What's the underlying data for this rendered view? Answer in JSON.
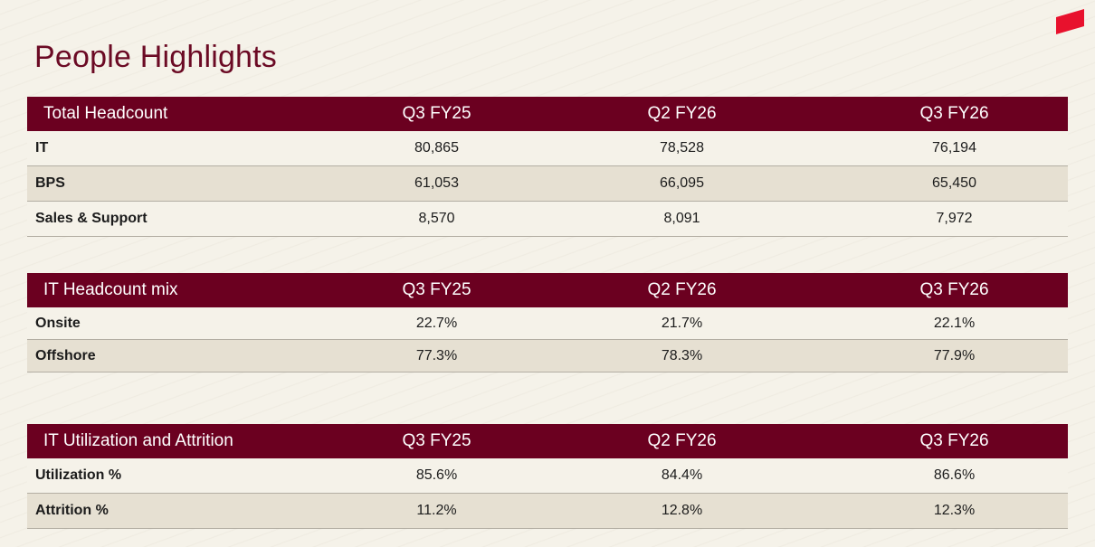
{
  "page": {
    "title": "People Highlights"
  },
  "headcount_table": {
    "header": [
      "Total Headcount",
      "Q3 FY25",
      "Q2 FY26",
      "Q3 FY26"
    ],
    "rows": [
      {
        "label": "IT",
        "values": [
          "80,865",
          "78,528",
          "76,194"
        ]
      },
      {
        "label": "BPS",
        "values": [
          "61,053",
          "66,095",
          "65,450"
        ]
      },
      {
        "label": "Sales & Support",
        "values": [
          "8,570",
          "8,091",
          "7,972"
        ]
      }
    ]
  },
  "mix_table": {
    "header": [
      "IT Headcount mix",
      "Q3 FY25",
      "Q2 FY26",
      "Q3 FY26"
    ],
    "rows": [
      {
        "label": "Onsite",
        "values": [
          "22.7%",
          "21.7%",
          "22.1%"
        ]
      },
      {
        "label": "Offshore",
        "values": [
          "77.3%",
          "78.3%",
          "77.9%"
        ]
      }
    ]
  },
  "utilization_table": {
    "header": [
      "IT Utilization and Attrition",
      "Q3 FY25",
      "Q2 FY26",
      "Q3 FY26"
    ],
    "rows": [
      {
        "label": "Utilization %",
        "values": [
          "85.6%",
          "84.4%",
          "86.6%"
        ]
      },
      {
        "label": "Attrition %",
        "values": [
          "11.2%",
          "12.8%",
          "12.3%"
        ]
      }
    ]
  },
  "colors": {
    "header_bg": "#6b0020",
    "title_color": "#6b0a24",
    "logo_red": "#e8112d",
    "page_bg": "#f5f2e9",
    "alt_row_bg": "#e6e0d2"
  },
  "icons": {
    "logo": "brand-logo-mark"
  }
}
